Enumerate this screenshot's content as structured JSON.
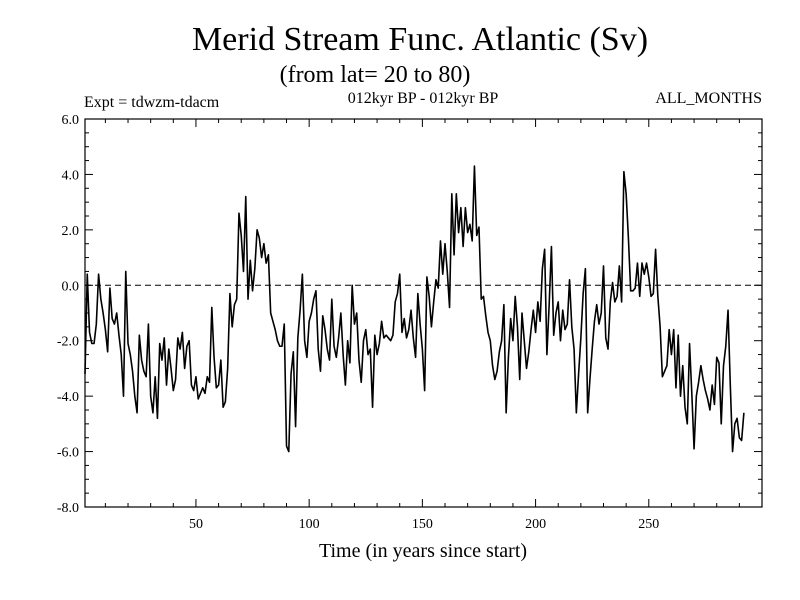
{
  "chart_data": {
    "type": "line",
    "title": "Merid Stream Func. Atlantic (Sv)",
    "subtitle": "(from lat= 20 to 80)",
    "header_left": "Expt = tdwzm-tdacm",
    "header_center": "012kyr BP - 012kyr BP",
    "header_right": "ALL_MONTHS",
    "xlabel": "Time (in years since start)",
    "ylabel": "",
    "xlim": [
      1,
      300
    ],
    "ylim": [
      -8.0,
      6.0
    ],
    "x_ticks": [
      50,
      100,
      150,
      200,
      250
    ],
    "x_tick_labels": [
      "50",
      "100",
      "150",
      "200",
      "250"
    ],
    "y_ticks": [
      -8.0,
      -6.0,
      -4.0,
      -2.0,
      0.0,
      2.0,
      4.0,
      6.0
    ],
    "y_tick_labels": [
      "-8.0",
      "-6.0",
      "-4.0",
      "-2.0",
      "0.0",
      "2.0",
      "4.0",
      "6.0"
    ],
    "reference_line": {
      "y": 0.0,
      "style": "dashed"
    },
    "grid": false,
    "legend": "none",
    "series": [
      {
        "x_start": 1,
        "x_step": 1,
        "values": [
          -3.2,
          0.4,
          -1.7,
          -2.1,
          -2.1,
          -1.4,
          0.4,
          -0.5,
          -1.0,
          -1.6,
          -2.4,
          -0.1,
          -1.2,
          -1.4,
          -1.0,
          -1.8,
          -2.5,
          -4.0,
          0.5,
          -2.1,
          -2.5,
          -3.1,
          -4.0,
          -4.6,
          -1.8,
          -2.7,
          -3.1,
          -3.3,
          -1.4,
          -4.0,
          -4.6,
          -3.3,
          -4.8,
          -2.1,
          -2.7,
          -1.9,
          -3.6,
          -2.3,
          -3.0,
          -3.8,
          -3.4,
          -1.9,
          -2.3,
          -1.7,
          -3.0,
          -2.2,
          -2.0,
          -3.6,
          -3.8,
          -3.3,
          -4.1,
          -3.9,
          -3.7,
          -3.9,
          -3.3,
          -3.5,
          -0.8,
          -2.6,
          -3.7,
          -3.6,
          -2.7,
          -4.4,
          -4.2,
          -3.0,
          -0.3,
          -1.5,
          -0.7,
          -0.5,
          2.6,
          1.8,
          0.5,
          3.2,
          -0.5,
          0.9,
          -0.2,
          0.6,
          2.0,
          1.7,
          1.0,
          1.5,
          0.8,
          1.1,
          -1.0,
          -1.3,
          -1.6,
          -2.0,
          -2.2,
          -2.2,
          -1.4,
          -5.8,
          -6.0,
          -3.2,
          -2.4,
          -5.1,
          -1.9,
          -0.9,
          0.4,
          -2.0,
          -2.6,
          -1.3,
          -1.0,
          -0.5,
          -0.2,
          -2.3,
          -3.1,
          -1.1,
          -1.6,
          -2.3,
          -2.7,
          -0.5,
          -2.2,
          -2.6,
          -1.9,
          -1.0,
          -2.5,
          -3.6,
          -2.0,
          -2.8,
          0.0,
          -1.4,
          -1.0,
          -2.7,
          -3.5,
          -2.0,
          -1.6,
          -2.5,
          -2.3,
          -4.4,
          -1.8,
          -2.5,
          -2.1,
          -1.3,
          -1.9,
          -1.8,
          -1.9,
          -2.0,
          -1.8,
          -0.6,
          -0.3,
          0.4,
          -1.7,
          -1.2,
          -1.9,
          -1.6,
          -0.9,
          -1.9,
          -2.6,
          -0.3,
          -1.4,
          -2.3,
          -3.8,
          0.3,
          -0.4,
          -1.5,
          -0.6,
          0.2,
          -0.1,
          1.6,
          0.4,
          1.5,
          0.5,
          -0.8,
          3.3,
          1.1,
          3.3,
          1.9,
          2.8,
          1.4,
          2.8,
          1.9,
          2.2,
          1.6,
          4.3,
          1.8,
          2.1,
          -0.5,
          -0.4,
          -1.1,
          -1.7,
          -2.0,
          -2.9,
          -3.4,
          -3.1,
          -2.4,
          -2.0,
          -0.7,
          -4.6,
          -2.6,
          -1.2,
          -2.0,
          -0.4,
          -1.5,
          -3.4,
          -1.0,
          -2.0,
          -3.0,
          -2.4,
          -1.6,
          -0.9,
          -1.7,
          -0.6,
          -1.3,
          0.6,
          1.3,
          -2.5,
          -0.7,
          1.4,
          -1.8,
          -1.0,
          -0.6,
          -2.0,
          -0.9,
          -1.6,
          -1.4,
          0.2,
          -1.5,
          -2.3,
          -4.6,
          -3.2,
          -1.9,
          -0.3,
          0.6,
          -4.6,
          -3.4,
          -2.3,
          -1.3,
          -0.7,
          -1.4,
          -1.0,
          0.7,
          -1.9,
          -2.3,
          -0.6,
          0.1,
          -0.6,
          -0.4,
          0.7,
          -0.6,
          4.1,
          3.3,
          1.7,
          -0.2,
          -0.2,
          -0.1,
          0.8,
          -0.4,
          0.8,
          0.4,
          0.8,
          0.3,
          -0.4,
          -0.3,
          1.3,
          -0.4,
          -1.5,
          -3.3,
          -3.1,
          -2.9,
          -1.6,
          -2.5,
          -1.6,
          -3.7,
          -1.8,
          -4.0,
          -2.9,
          -4.4,
          -5.0,
          -2.1,
          -3.9,
          -5.9,
          -4.0,
          -3.5,
          -2.9,
          -3.4,
          -3.8,
          -4.1,
          -4.5,
          -3.6,
          -4.3,
          -2.6,
          -2.8,
          -5.0,
          -2.9,
          -2.2,
          -0.9,
          -3.6,
          -6.0,
          -5.0,
          -4.8,
          -5.5,
          -5.6,
          -4.6
        ]
      }
    ]
  }
}
